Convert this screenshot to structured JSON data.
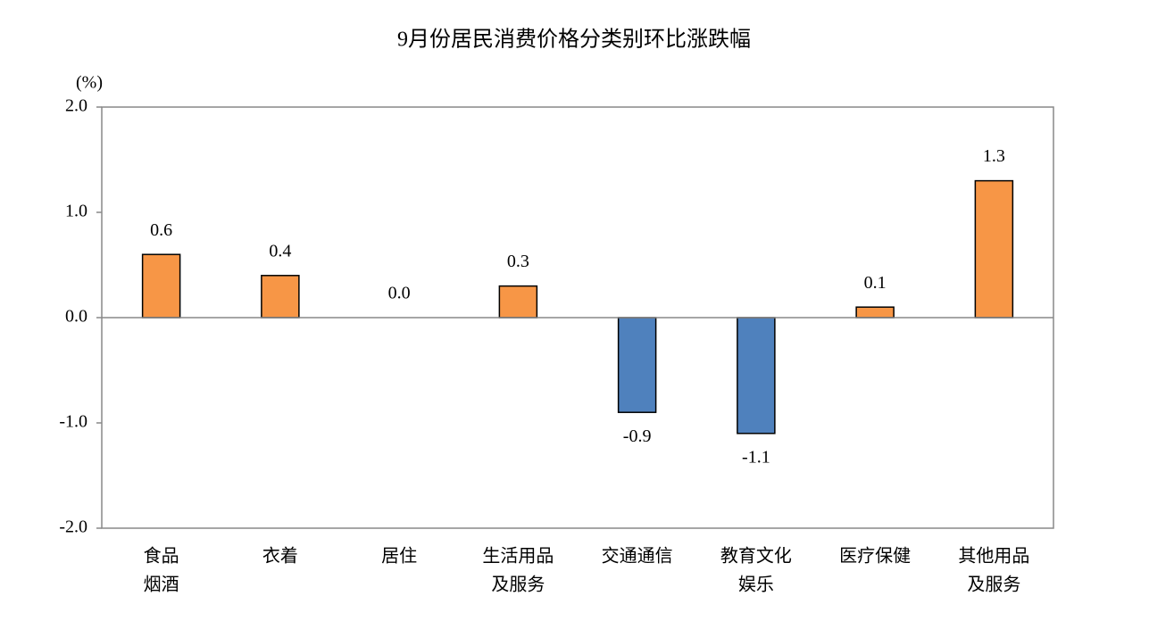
{
  "chart_data": {
    "type": "bar",
    "title": "9月份居民消费价格分类别环比涨跌幅",
    "y_unit": "(%)",
    "categories": [
      [
        "食品",
        "烟酒"
      ],
      [
        "衣着"
      ],
      [
        "居住"
      ],
      [
        "生活用品",
        "及服务"
      ],
      [
        "交通通信"
      ],
      [
        "教育文化",
        "娱乐"
      ],
      [
        "医疗保健"
      ],
      [
        "其他用品",
        "及服务"
      ]
    ],
    "values": [
      0.6,
      0.4,
      0,
      0.3,
      -0.9,
      -1.1,
      0.1,
      1.3
    ],
    "value_labels": [
      "0.6",
      "0.4",
      "0.0",
      "0.3",
      "-0.9",
      "-1.1",
      "0.1",
      "1.3"
    ],
    "colors": [
      "#f79646",
      "#f79646",
      "#f79646",
      "#f79646",
      "#4f81bd",
      "#4f81bd",
      "#f79646",
      "#f79646"
    ],
    "ylim": [
      -2,
      2
    ],
    "yticks": [
      {
        "value": -2,
        "label": "-2.0"
      },
      {
        "value": -1,
        "label": "-1.0"
      },
      {
        "value": 0,
        "label": "0.0"
      },
      {
        "value": 1,
        "label": "1.0"
      },
      {
        "value": 2,
        "label": "2.0"
      }
    ]
  }
}
